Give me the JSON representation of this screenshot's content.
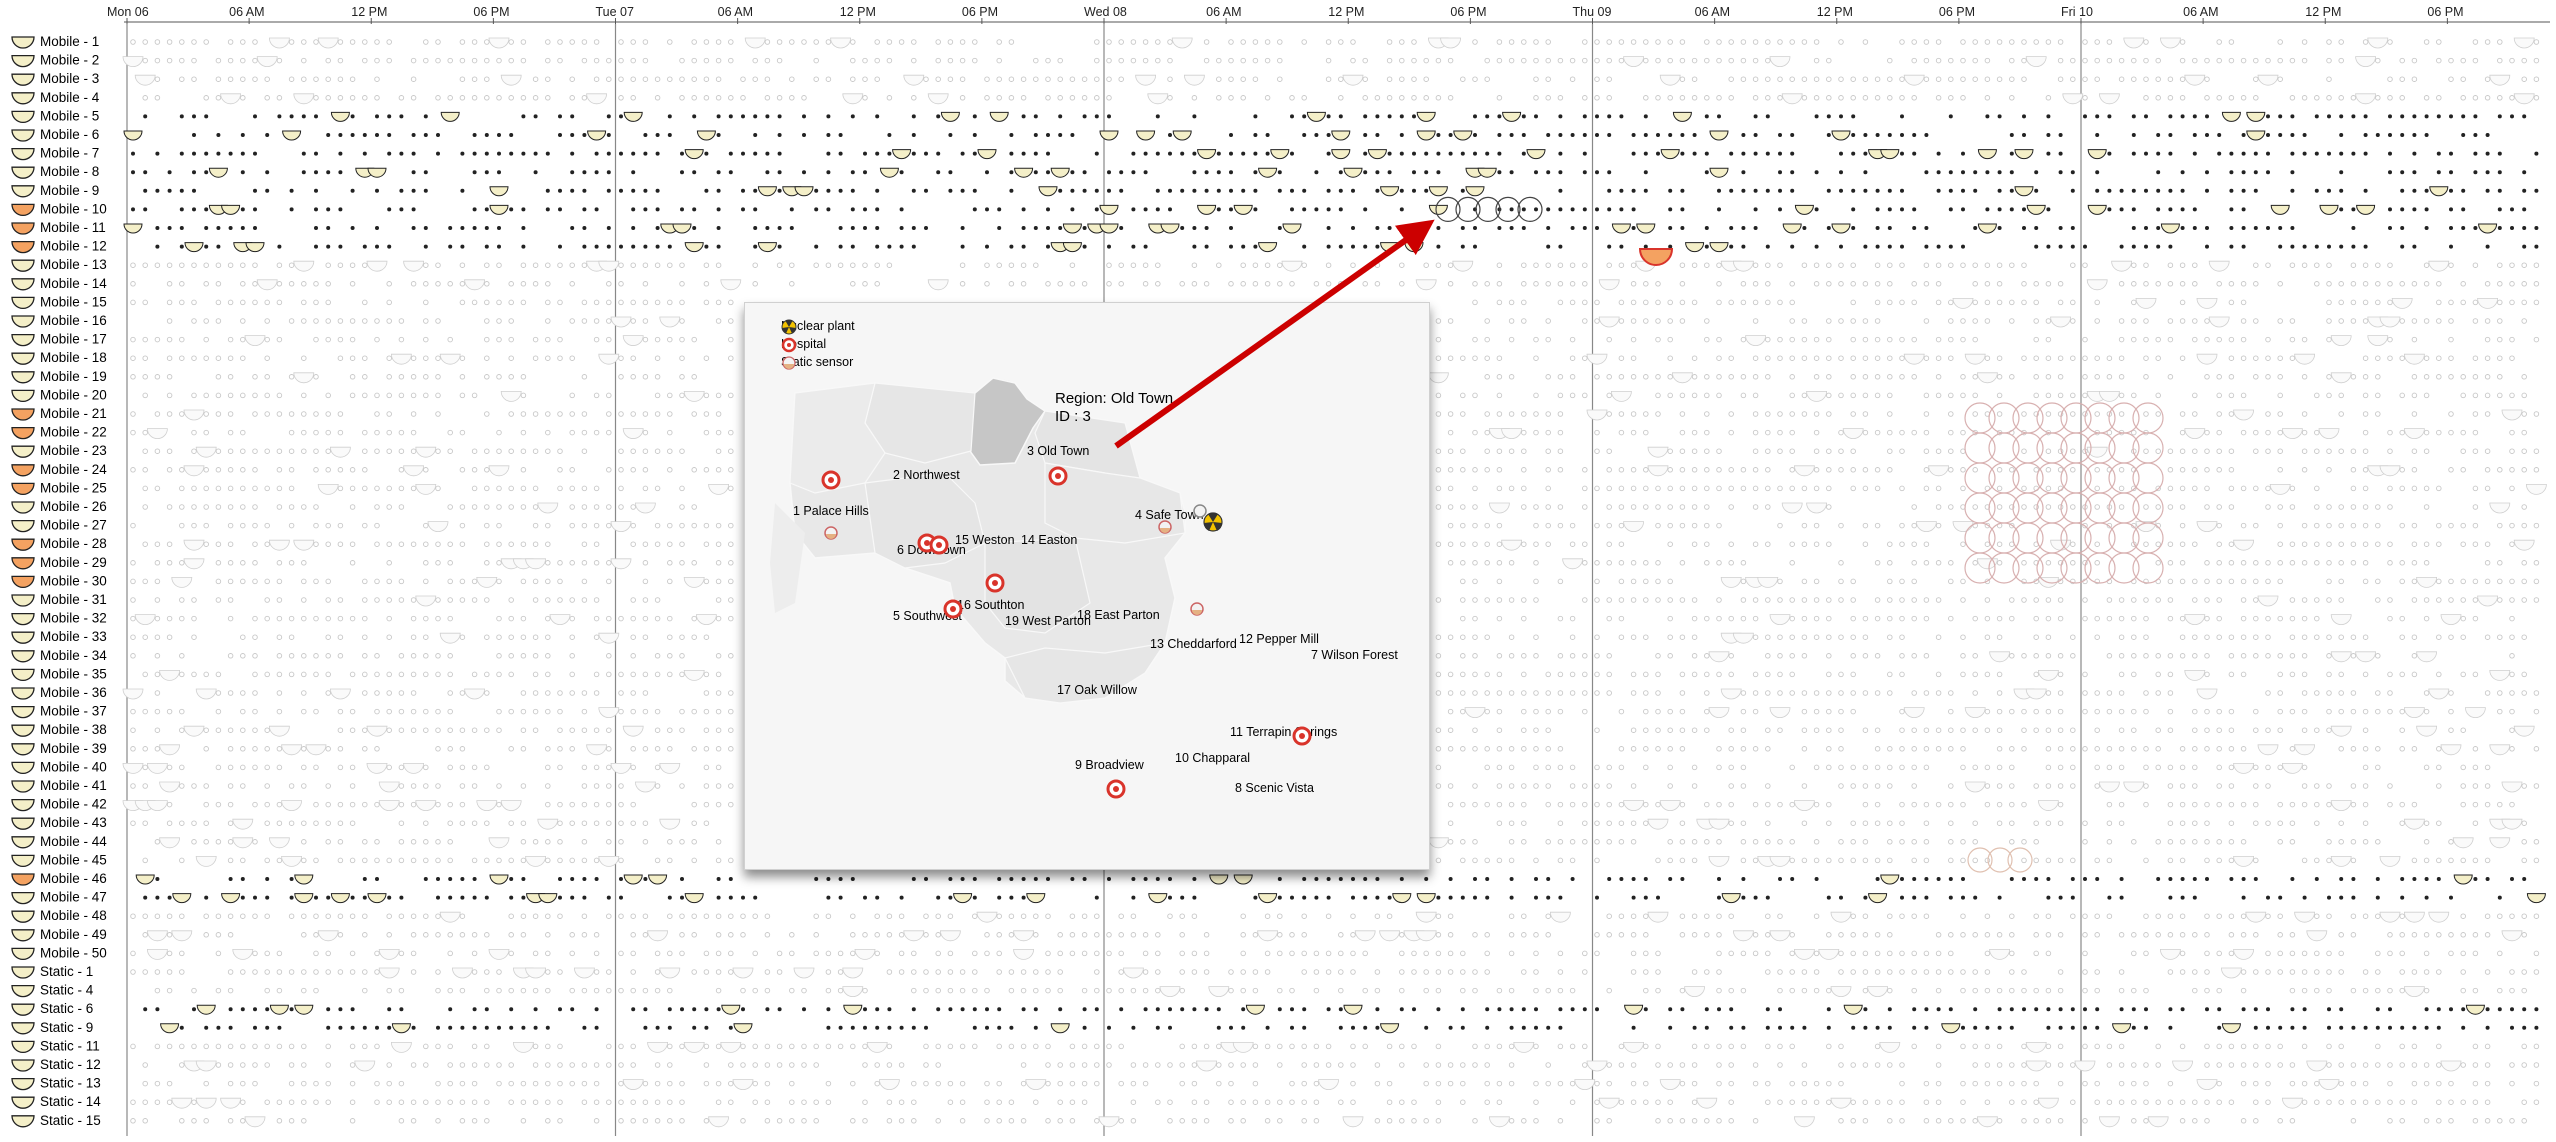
{
  "timeline": {
    "day_labels": [
      "Mon 06",
      "Tue 07",
      "Wed 08",
      "Thu 09",
      "Fri 10"
    ],
    "hour_labels": [
      "06 AM",
      "12 PM",
      "06 PM"
    ],
    "mobile_rows": [
      "Mobile - 1",
      "Mobile - 2",
      "Mobile - 3",
      "Mobile - 4",
      "Mobile - 5",
      "Mobile - 6",
      "Mobile - 7",
      "Mobile - 8",
      "Mobile - 9",
      "Mobile - 10",
      "Mobile - 11",
      "Mobile - 12",
      "Mobile - 13",
      "Mobile - 14",
      "Mobile - 15",
      "Mobile - 16",
      "Mobile - 17",
      "Mobile - 18",
      "Mobile - 19",
      "Mobile - 20",
      "Mobile - 21",
      "Mobile - 22",
      "Mobile - 23",
      "Mobile - 24",
      "Mobile - 25",
      "Mobile - 26",
      "Mobile - 27",
      "Mobile - 28",
      "Mobile - 29",
      "Mobile - 30",
      "Mobile - 31",
      "Mobile - 32",
      "Mobile - 33",
      "Mobile - 34",
      "Mobile - 35",
      "Mobile - 36",
      "Mobile - 37",
      "Mobile - 38",
      "Mobile - 39",
      "Mobile - 40",
      "Mobile - 41",
      "Mobile - 42",
      "Mobile - 43",
      "Mobile - 44",
      "Mobile - 45",
      "Mobile - 46",
      "Mobile - 47",
      "Mobile - 48",
      "Mobile - 49",
      "Mobile - 50"
    ],
    "static_rows": [
      "Static - 1",
      "Static - 4",
      "Static - 6",
      "Static - 9",
      "Static - 11",
      "Static - 12",
      "Static - 13",
      "Static - 14",
      "Static - 15"
    ]
  },
  "legend": {
    "nuclear_plant": "Nuclear plant",
    "hospital": "Hospital",
    "static_sensor": "Static sensor"
  },
  "tooltip": {
    "region": "Region: Old Town",
    "id": "ID : 3"
  },
  "regions": [
    "1 Palace Hills",
    "2 Northwest",
    "3 Old Town",
    "4 Safe Town",
    "5 Southwest",
    "6 Downtown",
    "7 Wilson Forest",
    "8 Scenic Vista",
    "9 Broadview",
    "10 Chapparal",
    "11 Terrapin Springs",
    "12 Pepper Mill",
    "13 Cheddarford",
    "14 Easton",
    "15 Weston",
    "16 Southton",
    "17 Oak Willow",
    "18 East Parton",
    "19 West Parton"
  ],
  "colors": {
    "highlight_region": "#c6c6c6",
    "map_land": "#e9e9e9",
    "arrow": "#cc0000",
    "hospital": "#d9342b",
    "nuclear": "#f2c200"
  }
}
